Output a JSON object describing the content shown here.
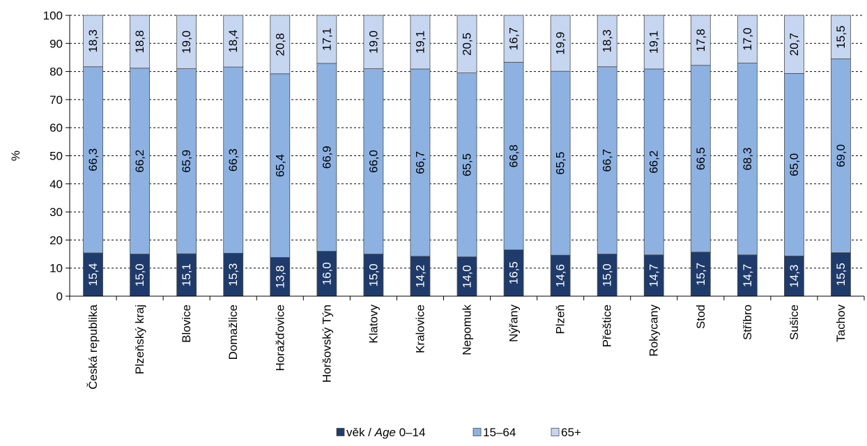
{
  "chart_data": {
    "type": "bar",
    "stacked": true,
    "orientation": "vertical",
    "ylabel": "%",
    "ylim": [
      0,
      100
    ],
    "yticks": [
      0,
      10,
      20,
      30,
      40,
      50,
      60,
      70,
      80,
      90,
      100
    ],
    "grid": "horizontal dashed",
    "legend_position": "bottom",
    "categories": [
      "Česká republika",
      "Plzeňský kraj",
      "Blovice",
      "Domažlice",
      "Horažďovice",
      "Horšovský Týn",
      "Klatovy",
      "Kralovice",
      "Nepomuk",
      "Nýřany",
      "Plzeň",
      "Přeštice",
      "Rokycany",
      "Stod",
      "Stříbro",
      "Sušice",
      "Tachov"
    ],
    "series": [
      {
        "name_prefix": "věk / ",
        "name_italic": "Age",
        "name_suffix": " 0–14",
        "color": "#1f3b6b",
        "label_color": "#ffffff",
        "values": [
          15.4,
          15.0,
          15.1,
          15.3,
          13.8,
          16.0,
          15.0,
          14.2,
          14.0,
          16.5,
          14.6,
          15.0,
          14.7,
          15.7,
          14.7,
          14.3,
          15.5
        ],
        "labels": [
          "15,4",
          "15,0",
          "15,1",
          "15,3",
          "13,8",
          "16,0",
          "15,0",
          "14,2",
          "14,0",
          "16,5",
          "14,6",
          "15,0",
          "14,7",
          "15,7",
          "14,7",
          "14,3",
          "15,5"
        ]
      },
      {
        "name": "15–64",
        "color": "#8db2e2",
        "label_color": "#000000",
        "values": [
          66.3,
          66.2,
          65.9,
          66.3,
          65.4,
          66.9,
          66.0,
          66.7,
          65.5,
          66.8,
          65.5,
          66.7,
          66.2,
          66.5,
          68.3,
          65.0,
          69.0
        ],
        "labels": [
          "66,3",
          "66,2",
          "65,9",
          "66,3",
          "65,4",
          "66,9",
          "66,0",
          "66,7",
          "65,5",
          "66,8",
          "65,5",
          "66,7",
          "66,2",
          "66,5",
          "68,3",
          "65,0",
          "69,0"
        ]
      },
      {
        "name": "65+",
        "color": "#c6d6f0",
        "label_color": "#000000",
        "values": [
          18.3,
          18.8,
          19.0,
          18.4,
          20.8,
          17.1,
          19.0,
          19.1,
          20.5,
          16.7,
          19.9,
          18.3,
          19.1,
          17.8,
          17.0,
          20.7,
          15.5
        ],
        "labels": [
          "18,3",
          "18,8",
          "19,0",
          "18,4",
          "20,8",
          "17,1",
          "19,0",
          "19,1",
          "20,5",
          "16,7",
          "19,9",
          "18,3",
          "19,1",
          "17,8",
          "17,0",
          "20,7",
          "15,5"
        ]
      }
    ]
  }
}
